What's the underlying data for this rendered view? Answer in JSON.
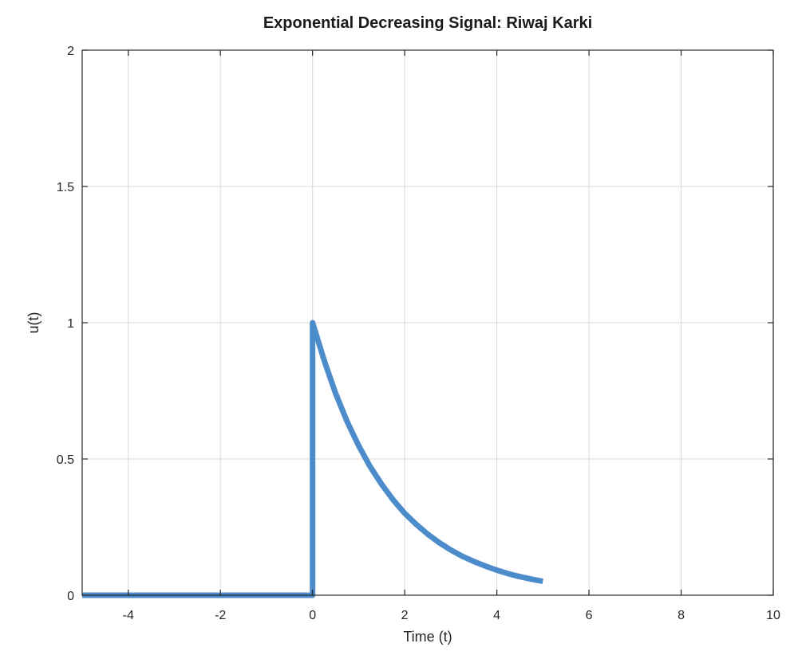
{
  "chart_data": {
    "type": "line",
    "title": "Exponential Decreasing Signal: Riwaj Karki",
    "xlabel": "Time (t)",
    "ylabel": "u(t)",
    "xlim": [
      -5,
      10
    ],
    "ylim": [
      0,
      2
    ],
    "xticks": [
      -4,
      -2,
      0,
      2,
      4,
      6,
      8,
      10
    ],
    "xtick_labels": [
      "-4",
      "-2",
      "0",
      "2",
      "4",
      "6",
      "8",
      "10"
    ],
    "yticks": [
      0,
      0.5,
      1,
      1.5,
      2
    ],
    "ytick_labels": [
      "0",
      "0.5",
      "1",
      "1.5",
      "2"
    ],
    "grid": true,
    "color": "#3a7fc4",
    "series": [
      {
        "x": [
          -5,
          0,
          0,
          0.25,
          0.5,
          0.75,
          1,
          1.25,
          1.5,
          1.75,
          2,
          2.25,
          2.5,
          2.75,
          3,
          3.25,
          3.5,
          3.75,
          4,
          4.25,
          4.5,
          4.75,
          5
        ],
        "y": [
          0,
          0,
          1,
          0.863,
          0.741,
          0.637,
          0.549,
          0.472,
          0.407,
          0.35,
          0.301,
          0.26,
          0.224,
          0.193,
          0.166,
          0.143,
          0.124,
          0.107,
          0.092,
          0.079,
          0.068,
          0.059,
          0.051
        ]
      }
    ]
  }
}
